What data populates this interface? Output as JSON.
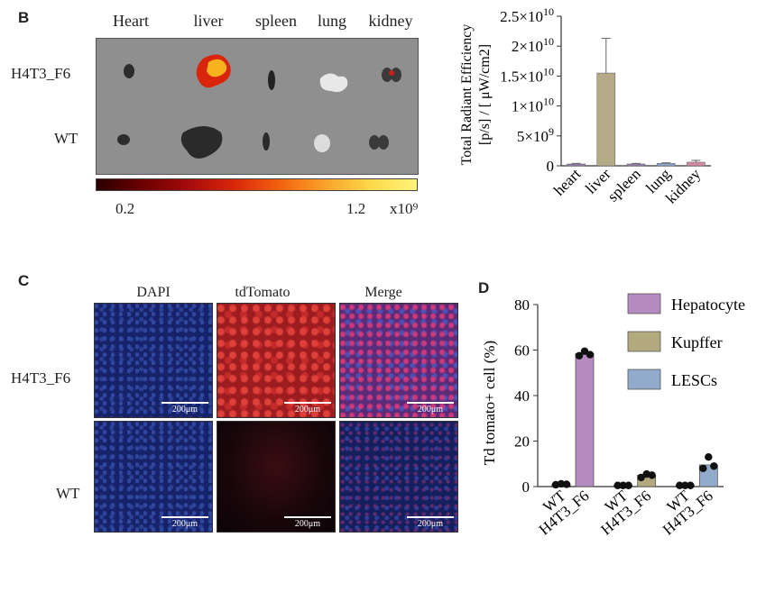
{
  "panel_b": {
    "letter": "B",
    "organs": [
      "Heart",
      "liver",
      "spleen",
      "lung",
      "kidney"
    ],
    "rows": [
      "H4T3_F6",
      "WT"
    ],
    "scale_min": "0.2",
    "scale_max": "1.2",
    "scale_unit": "x10⁹",
    "colors": {
      "heat_low": "#2a0000",
      "heat_high": "#fff37a"
    }
  },
  "panel_c": {
    "letter": "C",
    "columns": [
      "DAPI",
      "tdTomato",
      "Merge"
    ],
    "rows": [
      "H4T3_F6",
      "WT"
    ],
    "scalebar": "200μm"
  },
  "panel_d_label": "D",
  "chart_data": [
    {
      "type": "bar",
      "ylabel_lines": [
        "Total Radiant Efficiency",
        "[p/s] / [ μW/cm2]"
      ],
      "categories": [
        "heart",
        "liver",
        "spleen",
        "lung",
        "kidney"
      ],
      "values": [
        300000000.0,
        15500000000.0,
        300000000.0,
        400000000.0,
        600000000.0
      ],
      "errors": [
        100000000.0,
        5800000000.0,
        100000000.0,
        100000000.0,
        300000000.0
      ],
      "bar_colors": [
        "#9b7fb8",
        "#b5ab86",
        "#9b7fb8",
        "#8fa7cf",
        "#d68aa0"
      ],
      "ylim": [
        0,
        25000000000.0
      ],
      "yticks": [
        {
          "value": 0,
          "m": "0",
          "e": ""
        },
        {
          "value": 5000000000.0,
          "m": "5×10",
          "e": "9"
        },
        {
          "value": 10000000000.0,
          "m": "1×10",
          "e": "10"
        },
        {
          "value": 15000000000.0,
          "m": "1.5×10",
          "e": "10"
        },
        {
          "value": 20000000000.0,
          "m": "2×10",
          "e": "10"
        },
        {
          "value": 25000000000.0,
          "m": "2.5×10",
          "e": "10"
        }
      ]
    },
    {
      "type": "bar",
      "ylabel": "Td tomato+ cell (%)",
      "ylim": [
        0,
        80
      ],
      "yticks": [
        0,
        20,
        40,
        60,
        80
      ],
      "groups": [
        {
          "series": "Hepatocyte",
          "bars": [
            {
              "x": "WT",
              "value": 1.0,
              "points": [
                0.8,
                1.2,
                1.0
              ]
            },
            {
              "x": "H4T3_F6",
              "value": 58.5,
              "points": [
                57.5,
                59.5,
                58.0
              ]
            }
          ]
        },
        {
          "series": "Kupffer",
          "bars": [
            {
              "x": "WT",
              "value": 0.5,
              "points": [
                0.5,
                0.5,
                0.5
              ]
            },
            {
              "x": "H4T3_F6",
              "value": 5.0,
              "points": [
                4.0,
                5.5,
                5.0
              ]
            }
          ]
        },
        {
          "series": "LESCs",
          "bars": [
            {
              "x": "WT",
              "value": 0.5,
              "points": [
                0.5,
                0.5,
                0.5
              ]
            },
            {
              "x": "H4T3_F6",
              "value": 9.5,
              "points": [
                8.0,
                13.0,
                9.0
              ]
            }
          ]
        }
      ],
      "x_labels": [
        "WT",
        "H4T3_F6"
      ],
      "legend": [
        {
          "name": "Hepatocyte",
          "color": "#b48ac0"
        },
        {
          "name": "Kupffer",
          "color": "#b3a97f"
        },
        {
          "name": "LESCs",
          "color": "#92aacb"
        }
      ]
    }
  ]
}
